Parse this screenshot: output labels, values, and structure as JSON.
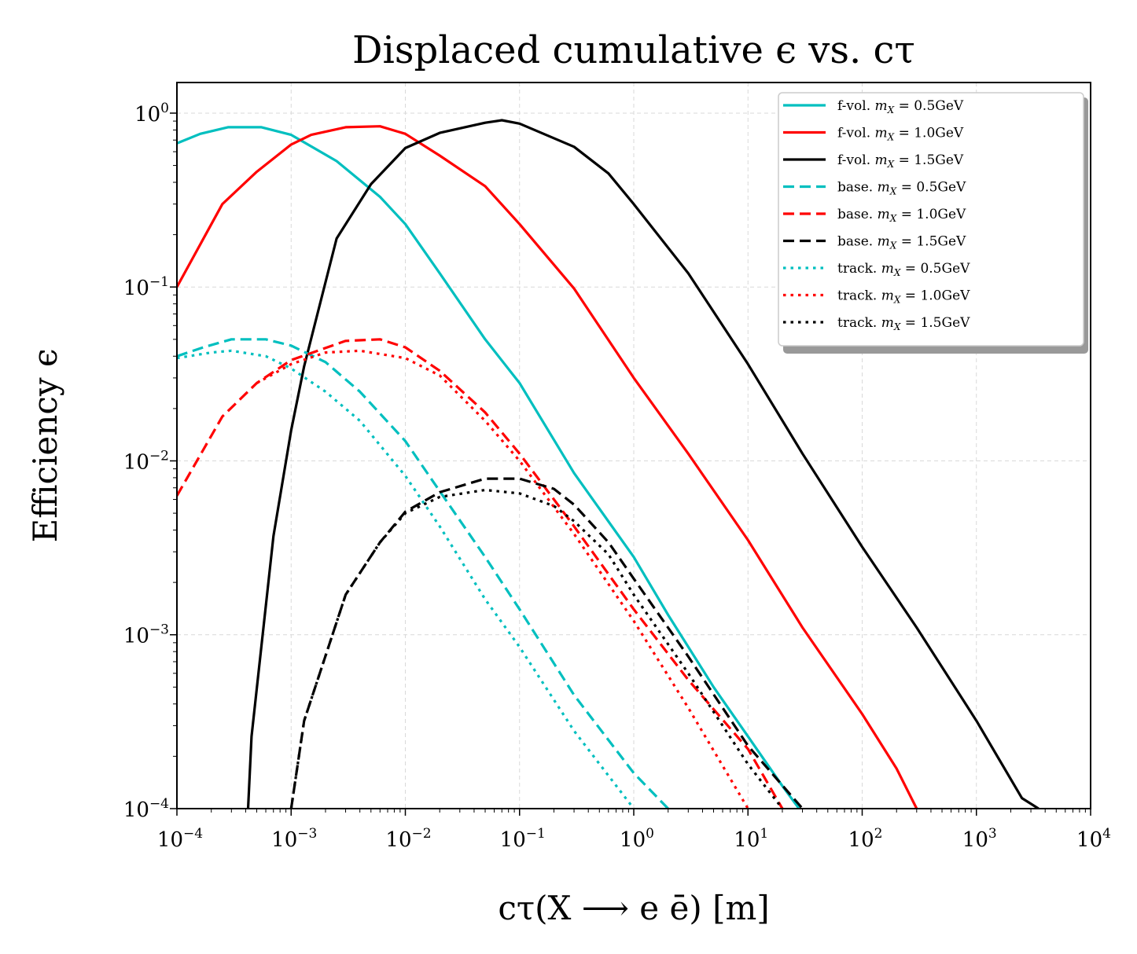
{
  "chart_data": {
    "type": "line",
    "title": "Displaced cumulative ϵ vs. cτ",
    "xlabel": "cτ(X ⟶ e ē) [m]",
    "ylabel": "Efficiency  ϵ",
    "xscale": "log",
    "yscale": "log",
    "xlim": [
      0.0001,
      10000
    ],
    "ylim": [
      0.0001,
      1.5
    ],
    "grid": true,
    "legend_position": "top-right",
    "x_ticks": [
      {
        "base": "10",
        "exp": "−4"
      },
      {
        "base": "10",
        "exp": "−3"
      },
      {
        "base": "10",
        "exp": "−2"
      },
      {
        "base": "10",
        "exp": "−1"
      },
      {
        "base": "10",
        "exp": "0"
      },
      {
        "base": "10",
        "exp": "1"
      },
      {
        "base": "10",
        "exp": "2"
      },
      {
        "base": "10",
        "exp": "3"
      },
      {
        "base": "10",
        "exp": "4"
      }
    ],
    "y_ticks": [
      {
        "base": "10",
        "exp": "−4"
      },
      {
        "base": "10",
        "exp": "−3"
      },
      {
        "base": "10",
        "exp": "−2"
      },
      {
        "base": "10",
        "exp": "−1"
      },
      {
        "base": "10",
        "exp": "0"
      }
    ],
    "series": [
      {
        "name": "f-vol.  m_X = 0.5GeV",
        "label_prefix": "f-vol.",
        "label_mass": "= 0.5GeV",
        "color": "#00bfbf",
        "style": "solid",
        "x": [
          0.0001,
          0.00016,
          0.00028,
          0.00055,
          0.001,
          0.0025,
          0.006,
          0.01,
          0.02,
          0.05,
          0.1,
          0.3,
          1,
          2,
          5,
          10,
          20,
          28
        ],
        "y": [
          0.67,
          0.76,
          0.83,
          0.83,
          0.75,
          0.53,
          0.33,
          0.23,
          0.12,
          0.05,
          0.028,
          0.0085,
          0.0028,
          0.0013,
          0.0005,
          0.00026,
          0.000135,
          0.0001
        ]
      },
      {
        "name": "f-vol.  m_X = 1.0GeV",
        "label_prefix": "f-vol.",
        "label_mass": "= 1.0GeV",
        "color": "#ff0000",
        "style": "solid",
        "x": [
          0.0001,
          0.00025,
          0.0005,
          0.001,
          0.0015,
          0.003,
          0.006,
          0.01,
          0.02,
          0.05,
          0.1,
          0.3,
          1,
          3,
          10,
          30,
          100,
          200,
          300
        ],
        "y": [
          0.1,
          0.3,
          0.46,
          0.66,
          0.75,
          0.83,
          0.84,
          0.76,
          0.57,
          0.38,
          0.23,
          0.098,
          0.03,
          0.011,
          0.0035,
          0.0011,
          0.00035,
          0.00017,
          0.0001
        ]
      },
      {
        "name": "f-vol.  m_X = 1.5GeV",
        "label_prefix": "f-vol.",
        "label_mass": "= 1.5GeV",
        "color": "#000000",
        "style": "solid",
        "x": [
          0.00042,
          0.00045,
          0.0007,
          0.001,
          0.0013,
          0.0025,
          0.005,
          0.01,
          0.02,
          0.05,
          0.07,
          0.1,
          0.3,
          0.6,
          1,
          3,
          10,
          30,
          100,
          300,
          1000,
          2500,
          3500
        ],
        "y": [
          0.0001,
          0.00026,
          0.0037,
          0.015,
          0.035,
          0.19,
          0.39,
          0.63,
          0.77,
          0.88,
          0.91,
          0.87,
          0.64,
          0.45,
          0.3,
          0.12,
          0.036,
          0.011,
          0.0032,
          0.0011,
          0.00032,
          0.000115,
          0.0001
        ]
      },
      {
        "name": "base.  m_X = 0.5GeV",
        "label_prefix": "base.",
        "label_mass": "= 0.5GeV",
        "color": "#00bfbf",
        "style": "dashed",
        "x": [
          0.0001,
          0.00017,
          0.0003,
          0.0006,
          0.001,
          0.002,
          0.004,
          0.01,
          0.02,
          0.05,
          0.1,
          0.3,
          1,
          2
        ],
        "y": [
          0.04,
          0.045,
          0.05,
          0.05,
          0.046,
          0.037,
          0.025,
          0.013,
          0.0067,
          0.0028,
          0.0014,
          0.00045,
          0.00016,
          0.0001
        ]
      },
      {
        "name": "base.  m_X = 1.0GeV",
        "label_prefix": "base.",
        "label_mass": "= 1.0GeV",
        "color": "#ff0000",
        "style": "dashed",
        "x": [
          0.0001,
          0.00025,
          0.0005,
          0.001,
          0.003,
          0.006,
          0.01,
          0.02,
          0.05,
          0.1,
          0.3,
          1,
          3,
          10,
          20
        ],
        "y": [
          0.0063,
          0.018,
          0.028,
          0.038,
          0.049,
          0.05,
          0.045,
          0.033,
          0.019,
          0.011,
          0.0042,
          0.0014,
          0.00055,
          0.00022,
          0.0001
        ]
      },
      {
        "name": "base.  m_X = 1.5GeV",
        "label_prefix": "base.",
        "label_mass": "= 1.5GeV",
        "color": "#000000",
        "style": "dashed",
        "x": [
          0.001,
          0.0013,
          0.003,
          0.006,
          0.01,
          0.02,
          0.05,
          0.1,
          0.2,
          0.3,
          0.6,
          1,
          3,
          10,
          30
        ],
        "y": [
          0.0001,
          0.00032,
          0.0017,
          0.0034,
          0.0051,
          0.0066,
          0.0079,
          0.0079,
          0.0069,
          0.0056,
          0.0034,
          0.0021,
          0.00075,
          0.00023,
          0.0001
        ]
      },
      {
        "name": "track.  m_X = 0.5GeV",
        "label_prefix": "track.",
        "label_mass": "= 0.5GeV",
        "color": "#00bfbf",
        "style": "dotted",
        "x": [
          0.0001,
          0.0002,
          0.0003,
          0.0006,
          0.001,
          0.002,
          0.004,
          0.01,
          0.02,
          0.05,
          0.1,
          0.3,
          1
        ],
        "y": [
          0.039,
          0.042,
          0.043,
          0.04,
          0.034,
          0.025,
          0.017,
          0.0082,
          0.0042,
          0.0016,
          0.00085,
          0.00028,
          0.0001
        ]
      },
      {
        "name": "track.  m_X = 1.0GeV",
        "label_prefix": "track.",
        "label_mass": "= 1.0GeV",
        "color": "#ff0000",
        "style": "dotted",
        "x": [
          0.0005,
          0.001,
          0.002,
          0.004,
          0.01,
          0.02,
          0.05,
          0.1,
          0.3,
          1,
          3,
          10
        ],
        "y": [
          0.028,
          0.036,
          0.042,
          0.043,
          0.039,
          0.031,
          0.017,
          0.01,
          0.0038,
          0.0012,
          0.00038,
          0.0001
        ]
      },
      {
        "name": "track.  m_X = 1.5GeV",
        "label_prefix": "track.",
        "label_mass": "= 1.5GeV",
        "color": "#000000",
        "style": "dotted",
        "x": [
          0.001,
          0.0013,
          0.003,
          0.006,
          0.01,
          0.02,
          0.05,
          0.1,
          0.2,
          0.3,
          0.6,
          1,
          3,
          10,
          20
        ],
        "y": [
          0.0001,
          0.00032,
          0.0017,
          0.0034,
          0.005,
          0.0062,
          0.0068,
          0.0065,
          0.0055,
          0.0045,
          0.0029,
          0.0017,
          0.0006,
          0.00018,
          0.0001
        ]
      }
    ]
  }
}
